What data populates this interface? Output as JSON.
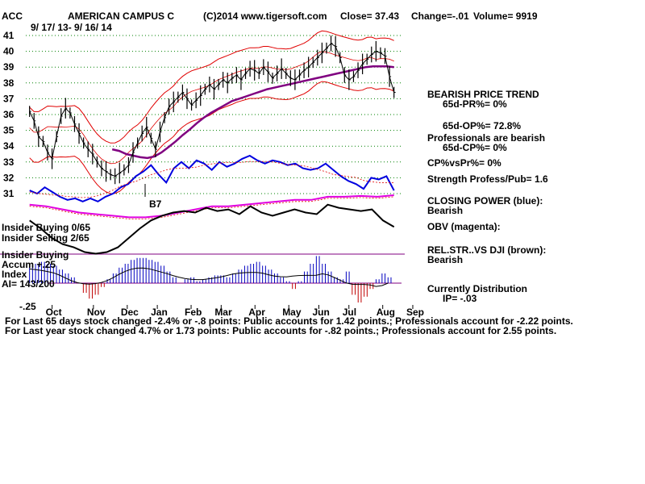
{
  "header": {
    "symbol": "ACC",
    "name": "AMERICAN CAMPUS C",
    "copyright": "(C)2014 www.tigersoft.com",
    "close": "Close=  37.43",
    "change": "Change=-.01",
    "volume": "Volume= 9919",
    "date_range": "9/ 17/ 13-  9/ 16/ 14"
  },
  "chart_data": {
    "type": "line",
    "price_axis": {
      "ylim": [
        30.4,
        41.4
      ],
      "ticks": [
        "41",
        "40",
        "39",
        "38",
        "37",
        "36",
        "35",
        "34",
        "33",
        "32",
        "31"
      ],
      "tick_values": [
        41,
        40,
        39,
        38,
        37,
        36,
        35,
        34,
        33,
        32,
        31
      ]
    },
    "x_months": [
      "Oct",
      "Nov",
      "Dec",
      "Jan",
      "Feb",
      "Mar",
      "Apr",
      "May",
      "Jun",
      "Jul",
      "Aug",
      "Sep"
    ],
    "x_month_pos": [
      0.07,
      0.18,
      0.27,
      0.35,
      0.44,
      0.52,
      0.61,
      0.7,
      0.78,
      0.86,
      0.95,
      1.03
    ],
    "price_series": [
      36.2,
      35.6,
      34.6,
      34.3,
      33.6,
      33.2,
      34.6,
      35.9,
      36.4,
      36.1,
      35.4,
      34.8,
      34.2,
      33.8,
      33.5,
      33.0,
      32.6,
      32.4,
      32.2,
      32.1,
      32.3,
      32.5,
      32.8,
      33.6,
      34.2,
      34.8,
      35.2,
      34.5,
      33.8,
      34.9,
      35.8,
      36.5,
      36.8,
      37.1,
      37.4,
      37.0,
      36.6,
      36.9,
      37.2,
      37.6,
      37.9,
      37.6,
      37.9,
      38.2,
      38.0,
      38.3,
      38.5,
      38.2,
      38.6,
      38.9,
      38.8,
      38.6,
      39.0,
      38.7,
      38.3,
      38.6,
      38.9,
      38.6,
      38.3,
      38.2,
      38.5,
      38.8,
      39.0,
      39.3,
      39.6,
      39.9,
      40.2,
      40.5,
      40.3,
      39.6,
      38.5,
      38.2,
      38.4,
      38.8,
      39.2,
      39.5,
      39.8,
      40.0,
      39.9,
      39.7,
      38.4,
      37.4
    ],
    "ma_purple": [
      33.8,
      33.7,
      33.5,
      33.4,
      33.3,
      33.25,
      33.35,
      33.6,
      33.95,
      34.3,
      34.7,
      35.05,
      35.45,
      35.8,
      36.1,
      36.35,
      36.6,
      36.85,
      37.0,
      37.15,
      37.3,
      37.45,
      37.6,
      37.7,
      37.8,
      37.9,
      38.0,
      38.1,
      38.2,
      38.3,
      38.4,
      38.5,
      38.6,
      38.7,
      38.8,
      38.9,
      39.0,
      39.05,
      39.05,
      39.05,
      39.0
    ],
    "ma_purple_start": 0.23,
    "closing_power_blue": [
      31.2,
      31.0,
      31.4,
      31.1,
      30.8,
      30.6,
      30.7,
      30.5,
      30.7,
      30.5,
      30.8,
      31.0,
      31.4,
      31.6,
      32.1,
      32.4,
      32.8,
      32.2,
      31.7,
      32.6,
      33.0,
      32.6,
      33.1,
      32.9,
      32.5,
      33.0,
      32.7,
      32.9,
      33.2,
      33.4,
      33.1,
      32.9,
      33.1,
      33.0,
      32.8,
      32.9,
      32.6,
      32.5,
      32.6,
      32.9,
      32.5,
      32.1,
      31.8,
      31.6,
      31.3,
      32.0,
      31.9,
      32.1,
      31.2
    ],
    "obv_magenta": [
      30.3,
      30.2,
      30.0,
      29.8,
      29.7,
      29.6,
      29.5,
      29.5,
      29.6,
      29.8,
      30.0,
      30.2,
      30.2,
      30.3,
      30.4,
      30.5,
      30.6,
      30.6,
      30.8,
      30.8,
      30.85,
      30.8,
      30.9
    ],
    "rel_str_black": [
      29.3,
      28.8,
      28.2,
      27.8,
      27.6,
      27.3,
      27.2,
      27.3,
      27.6,
      28.2,
      28.8,
      29.3,
      29.6,
      29.8,
      29.9,
      29.8,
      30.1,
      29.9,
      30.0,
      29.7,
      30.2,
      29.8,
      29.6,
      29.8,
      30.0,
      29.8,
      29.7,
      30.3,
      30.1,
      30.0,
      29.9,
      30.0,
      29.3,
      28.9
    ],
    "accum_bars": [
      0.9,
      1.0,
      1.1,
      1.0,
      0.9,
      0.7,
      0.5,
      0.3,
      0.0,
      -0.5,
      -0.8,
      -0.6,
      -0.2,
      0.2,
      0.5,
      0.8,
      1.0,
      1.2,
      1.3,
      1.3,
      1.2,
      1.1,
      0.9,
      0.6,
      0.3,
      0.0,
      0.2,
      0.3,
      0.1,
      0.2,
      0.3,
      0.4,
      0.4,
      0.3,
      0.5,
      0.7,
      0.9,
      1.0,
      1.1,
      0.9,
      0.7,
      0.5,
      0.3,
      0.1,
      -0.3,
      0.1,
      0.6,
      1.0,
      1.4,
      1.0,
      0.6,
      0.3,
      0.2,
      0.6,
      -0.6,
      -1.0,
      -0.7,
      -0.3,
      0.2,
      0.5,
      0.3
    ],
    "annotations": {
      "b7": "B7",
      "insider_buying": "Insider Buying  0/65",
      "insider_selling": "Insider Selling  2/65",
      "insider_buying2": "Insider Buying",
      "accum": "Accum  +.25",
      "index": "Index",
      "ai": "AI= 143/200",
      "neg25": "-.25"
    }
  },
  "right_panel": [
    "BEARISH PRICE TREND",
    "65d-PR%= 0%",
    "65d-OP%= 72.8%",
    "Professionals are bearish",
    "65d-CP%= 0%",
    "CP%vsPr%=  0%",
    "Strength Profess/Pub= 1.6",
    "CLOSING POWER (blue):",
    "Bearish",
    "OBV (magenta):",
    "REL.STR..VS DJI (brown):",
    "Bearish",
    "Currently Distribution",
    "IP= -.03"
  ],
  "footer": {
    "line1": "For Last 65 days stock changed -2.4% or -.8 points:  Public accounts for  1.42 points.;  Professionals account for -2.22 points.",
    "line2": "For Last year stock changed  4.7% or  1.73 points:  Public accounts for -.82 points.;  Professionals account for  2.55 points."
  },
  "colors": {
    "price": "#000000",
    "band": "#e00000",
    "ma": "#800080",
    "closing_power": "#0000e0",
    "obv": "#e000e0",
    "grid": "#008000",
    "accum_pos": "#0000c0",
    "accum_neg": "#c00000",
    "zero_line": "#800080"
  }
}
